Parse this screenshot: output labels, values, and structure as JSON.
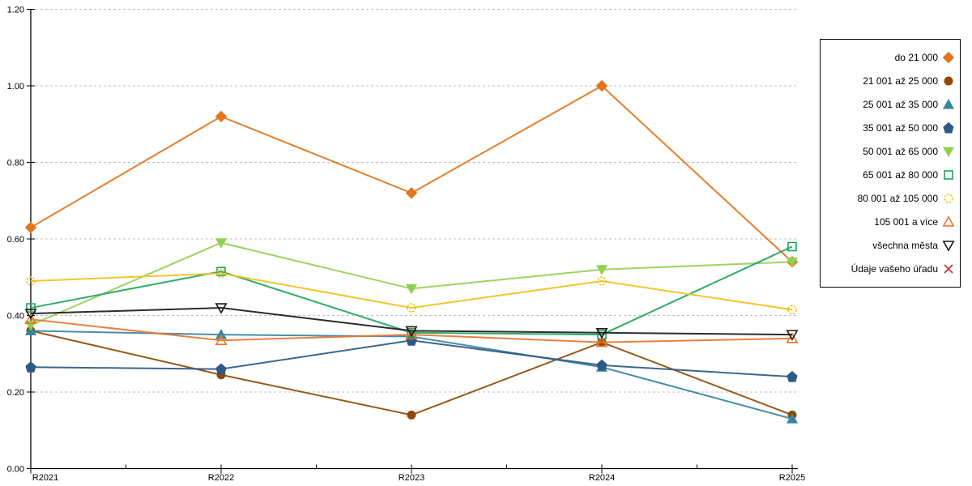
{
  "chart_data": {
    "type": "line",
    "title": "",
    "xlabel": "",
    "ylabel": "",
    "x": [
      "R2021",
      "R2022",
      "R2023",
      "R2024",
      "R2025"
    ],
    "ylim": [
      0.0,
      1.2
    ],
    "ytick_step": 0.2,
    "ytick_labels": [
      "0.00",
      "0.20",
      "0.40",
      "0.60",
      "0.80",
      "1.00",
      "1.20"
    ],
    "grid": "horizontal-dashed",
    "gridline_color": "#BFBFBF",
    "axis_color": "#000000",
    "legend_position": "right",
    "series": [
      {
        "name": "do 21 000",
        "marker": "diamond",
        "fill": "filled",
        "color": "#E2741C",
        "values": [
          0.63,
          0.92,
          0.72,
          1.0,
          0.54
        ]
      },
      {
        "name": "21 001 až 25 000",
        "marker": "circle",
        "fill": "filled",
        "color": "#8F4B06",
        "values": [
          0.36,
          0.245,
          0.14,
          0.33,
          0.14
        ]
      },
      {
        "name": "25 001 až 35 000",
        "marker": "triangle-up",
        "fill": "filled",
        "color": "#36869E",
        "values": [
          0.36,
          0.35,
          0.345,
          0.265,
          0.13
        ]
      },
      {
        "name": "35 001 až 50 000",
        "marker": "pentagon",
        "fill": "filled",
        "color": "#2E5984",
        "values": [
          0.265,
          0.26,
          0.335,
          0.27,
          0.24
        ]
      },
      {
        "name": "50 001 až 65 000",
        "marker": "triangle-down",
        "fill": "filled",
        "color": "#92D050",
        "values": [
          0.375,
          0.59,
          0.47,
          0.52,
          0.54
        ]
      },
      {
        "name": "65 001 až 80 000",
        "marker": "square",
        "fill": "open",
        "color": "#1EA55B",
        "values": [
          0.42,
          0.515,
          0.355,
          0.35,
          0.58
        ]
      },
      {
        "name": "80 001 až 105 000",
        "marker": "circle",
        "fill": "open",
        "color": "#F2C018",
        "values": [
          0.49,
          0.51,
          0.42,
          0.49,
          0.415
        ]
      },
      {
        "name": "105 001 a více",
        "marker": "triangle-up",
        "fill": "open",
        "color": "#E87430",
        "values": [
          0.39,
          0.335,
          0.35,
          0.33,
          0.34
        ]
      },
      {
        "name": "všechna města",
        "marker": "triangle-down",
        "fill": "open",
        "color": "#1A1A1A",
        "values": [
          0.405,
          0.42,
          0.36,
          0.355,
          0.35
        ]
      },
      {
        "name": "Údaje vašeho úřadu",
        "marker": "x",
        "fill": "open",
        "color": "#C23030",
        "values": []
      }
    ]
  }
}
